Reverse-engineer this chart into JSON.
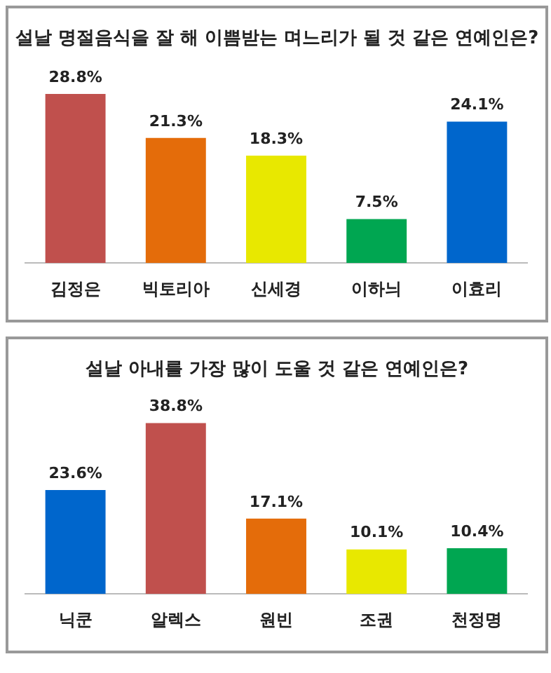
{
  "chart_data": [
    {
      "type": "bar",
      "title": "설날 명절음식을 잘 해 이쁨받는 며느리가 될 것 같은 연예인은?",
      "categories": [
        "김정은",
        "빅토리아",
        "신세경",
        "이하늬",
        "이효리"
      ],
      "values": [
        28.8,
        21.3,
        18.3,
        7.5,
        24.1
      ],
      "colors": [
        "#c0504d",
        "#e46c0a",
        "#e8e800",
        "#00a651",
        "#0066cc"
      ],
      "value_labels": [
        "28.8%",
        "21.3%",
        "18.3%",
        "7.5%",
        "24.1%"
      ],
      "grid": false,
      "legend": false
    },
    {
      "type": "bar",
      "title": "설날 아내를 가장 많이 도울 것 같은 연예인은?",
      "categories": [
        "닉쿤",
        "알렉스",
        "원빈",
        "조권",
        "천정명"
      ],
      "values": [
        23.6,
        38.8,
        17.1,
        10.1,
        10.4
      ],
      "colors": [
        "#0066cc",
        "#c0504d",
        "#e46c0a",
        "#e8e800",
        "#00a651"
      ],
      "value_labels": [
        "23.6%",
        "38.8%",
        "17.1%",
        "10.1%",
        "10.4%"
      ],
      "grid": false,
      "legend": false
    }
  ]
}
